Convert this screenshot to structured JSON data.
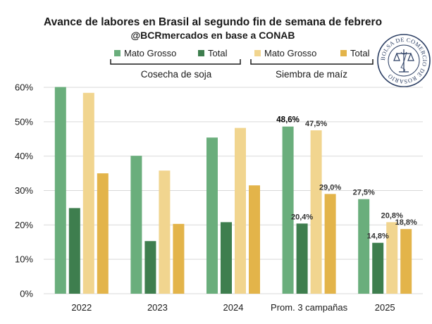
{
  "chart_data": {
    "type": "bar",
    "title": "Avance de labores en Brasil al segundo fin de semana de febrero",
    "subtitle": "@BCRmercados en base a CONAB",
    "categories": [
      "2022",
      "2023",
      "2024",
      "Prom. 3 campañas",
      "2025"
    ],
    "series": [
      {
        "name": "Mato Grosso",
        "group": "Cosecha de soja",
        "color": "#6aae7c",
        "values": [
          60.1,
          40.1,
          45.4,
          48.6,
          27.5
        ]
      },
      {
        "name": "Total",
        "group": "Cosecha de soja",
        "color": "#3e7e4e",
        "values": [
          24.9,
          15.3,
          20.8,
          20.4,
          14.8
        ]
      },
      {
        "name": "Mato Grosso",
        "group": "Siembra de maíz",
        "color": "#f1d58f",
        "values": [
          58.4,
          35.8,
          48.2,
          47.5,
          20.8
        ]
      },
      {
        "name": "Total",
        "group": "Siembra de maíz",
        "color": "#e3b44a",
        "values": [
          35.0,
          20.3,
          31.5,
          29.0,
          18.8
        ]
      }
    ],
    "groups": [
      "Cosecha de soja",
      "Siembra de maíz"
    ],
    "data_labels": {
      "Prom. 3 campañas": [
        "48,6%",
        "20,4%",
        "47,5%",
        "29,0%"
      ],
      "2025": [
        "27,5%",
        "14,8%",
        "20,8%",
        "18,8%"
      ]
    },
    "yticks": [
      "0%",
      "10%",
      "20%",
      "30%",
      "40%",
      "50%",
      "60%"
    ],
    "ylim": [
      0,
      60
    ],
    "xlabel": "",
    "ylabel": "",
    "grid": true,
    "legend_position": "top"
  },
  "logo": {
    "text": "BOLSA DE COMERCIO DE ROSARIO",
    "color": "#2b3e63"
  }
}
